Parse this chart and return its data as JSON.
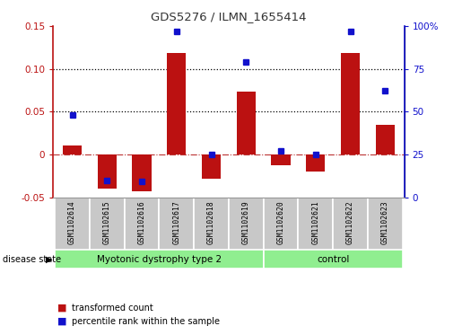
{
  "title": "GDS5276 / ILMN_1655414",
  "samples": [
    "GSM1102614",
    "GSM1102615",
    "GSM1102616",
    "GSM1102617",
    "GSM1102618",
    "GSM1102619",
    "GSM1102620",
    "GSM1102621",
    "GSM1102622",
    "GSM1102623"
  ],
  "bar_values": [
    0.01,
    -0.04,
    -0.043,
    0.119,
    -0.028,
    0.073,
    -0.013,
    -0.02,
    0.119,
    0.035
  ],
  "scatter_pct": [
    48,
    10,
    9,
    97,
    25,
    79,
    27,
    25,
    97,
    62
  ],
  "ylim_left": [
    -0.05,
    0.15
  ],
  "ylim_right": [
    0,
    100
  ],
  "yticks_left": [
    -0.05,
    0.0,
    0.05,
    0.1,
    0.15
  ],
  "yticks_right": [
    0,
    25,
    50,
    75,
    100
  ],
  "ytick_labels_left": [
    "-0.05",
    "0",
    "0.05",
    "0.10",
    "0.15"
  ],
  "ytick_labels_right": [
    "0",
    "25",
    "50",
    "75",
    "100%"
  ],
  "hlines": [
    0.05,
    0.1
  ],
  "bar_color": "#BB1111",
  "scatter_color": "#1111CC",
  "zero_line_color": "#BB3333",
  "hline_color": "#000000",
  "groups": [
    {
      "label": "Myotonic dystrophy type 2",
      "start": 0,
      "end": 5,
      "color": "#90EE90"
    },
    {
      "label": "control",
      "start": 6,
      "end": 9,
      "color": "#90EE90"
    }
  ],
  "disease_state_label": "disease state",
  "legend_items": [
    {
      "color": "#BB1111",
      "label": "transformed count"
    },
    {
      "color": "#1111CC",
      "label": "percentile rank within the sample"
    }
  ],
  "background_color": "#FFFFFF",
  "sample_box_color": "#C8C8C8",
  "title_color": "#333333"
}
